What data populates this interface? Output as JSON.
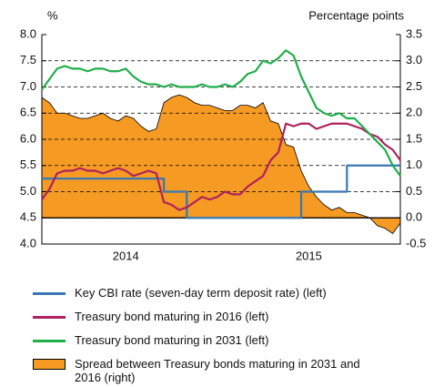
{
  "chart_data": {
    "type": "line",
    "ylabel": "%",
    "y2label": "Percentage points",
    "categories": [
      null,
      null,
      null,
      null,
      null,
      null,
      null,
      null,
      null,
      null,
      null,
      "2014",
      null,
      null,
      null,
      null,
      null,
      null,
      null,
      null,
      null,
      null,
      null,
      null,
      null,
      null,
      null,
      null,
      null,
      null,
      null,
      null,
      null,
      null,
      null,
      "2015",
      null,
      null,
      null,
      null,
      null,
      null,
      null,
      null,
      null,
      null,
      null,
      null
    ],
    "ylim": [
      4,
      8
    ],
    "yticks": [
      {
        "value": 4,
        "label": "4.0"
      },
      4.5,
      {
        "value": 5,
        "label": "5.0"
      },
      5.5,
      {
        "value": 6,
        "label": "6.0"
      },
      6.5,
      {
        "value": 7,
        "label": "7.0"
      },
      7.5,
      {
        "value": 8,
        "label": "8.0"
      }
    ],
    "y2lim": [
      -0.5,
      3.5
    ],
    "y2ticks": [
      -0.5,
      {
        "value": 0,
        "label": "0.0"
      },
      0.5,
      {
        "value": 1,
        "label": "1.0"
      },
      1.5,
      {
        "value": 2,
        "label": "2.0"
      },
      2.5,
      {
        "value": 3,
        "label": "3.0"
      },
      3.5
    ],
    "grid": true,
    "series": [
      {
        "name": "Key CBI rate (seven-day term deposit rate) (left)",
        "color": "#3a78b5",
        "drawstyle": "steps",
        "values": [
          5.25,
          5.25,
          5.25,
          5.25,
          5.25,
          5.25,
          5.25,
          5.25,
          5.25,
          5.25,
          5.25,
          5.25,
          5.25,
          5.25,
          5.25,
          5.25,
          5,
          5,
          5,
          4.5,
          4.5,
          4.5,
          4.5,
          4.5,
          4.5,
          4.5,
          4.5,
          4.5,
          4.5,
          4.5,
          4.5,
          4.5,
          4.5,
          4.5,
          5,
          5,
          5,
          5,
          5,
          5,
          5.5,
          5.5,
          5.5,
          5.5,
          5.5,
          5.5,
          5.5,
          5.5
        ]
      },
      {
        "name": "Treasury bond maturing in 2016 (left)",
        "color": "#b0205e",
        "values": [
          4.85,
          5.05,
          5.35,
          5.4,
          5.4,
          5.45,
          5.4,
          5.4,
          5.35,
          5.4,
          5.45,
          5.4,
          5.3,
          5.35,
          5.4,
          5.35,
          4.8,
          4.75,
          4.65,
          4.7,
          4.8,
          4.9,
          4.85,
          4.9,
          5.0,
          4.95,
          4.95,
          5.1,
          5.2,
          5.3,
          5.6,
          5.75,
          6.3,
          6.25,
          6.3,
          6.3,
          6.2,
          6.25,
          6.3,
          6.3,
          6.3,
          6.25,
          6.2,
          6.1,
          6.05,
          5.9,
          5.8,
          5.6
        ]
      },
      {
        "name": "Treasury bond maturing in 2031 (left)",
        "color": "#1fae4a",
        "values": [
          6.95,
          7.15,
          7.35,
          7.4,
          7.35,
          7.35,
          7.3,
          7.35,
          7.35,
          7.3,
          7.3,
          7.35,
          7.2,
          7.1,
          7.05,
          7.05,
          7.0,
          7.05,
          7.0,
          7.0,
          7.0,
          7.05,
          7.0,
          7.0,
          7.05,
          7.0,
          7.1,
          7.25,
          7.3,
          7.5,
          7.45,
          7.55,
          7.7,
          7.6,
          7.2,
          6.9,
          6.6,
          6.5,
          6.45,
          6.5,
          6.4,
          6.4,
          6.25,
          6.1,
          5.95,
          5.8,
          5.5,
          5.3
        ]
      },
      {
        "name": "Spread between Treasury bonds maturing in 2031 and 2016 (right)",
        "color": "#f59a23",
        "type": "area",
        "axis": "y2",
        "values": [
          2.3,
          2.2,
          2.0,
          2.0,
          1.95,
          1.9,
          1.9,
          1.95,
          2.0,
          1.9,
          1.85,
          1.95,
          1.9,
          1.75,
          1.65,
          1.7,
          2.2,
          2.3,
          2.35,
          2.3,
          2.2,
          2.15,
          2.15,
          2.1,
          2.05,
          2.05,
          2.15,
          2.15,
          2.1,
          2.2,
          1.85,
          1.8,
          1.4,
          1.35,
          0.9,
          0.6,
          0.4,
          0.25,
          0.15,
          0.2,
          0.1,
          0.1,
          0.05,
          0.0,
          -0.15,
          -0.2,
          -0.3,
          -0.1
        ]
      }
    ]
  }
}
